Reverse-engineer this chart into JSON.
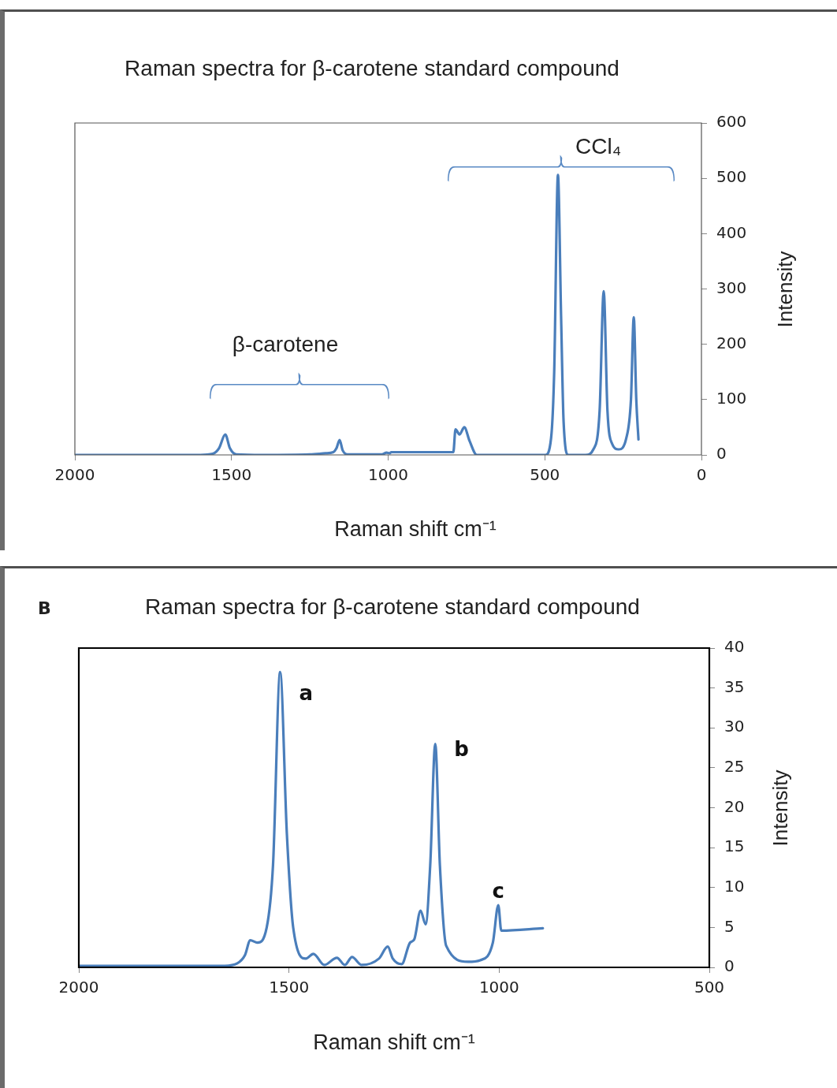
{
  "chart_data": [
    {
      "type": "line",
      "title": "Raman spectra for β-carotene standard compound",
      "xlabel": "Raman shift cm⁻¹",
      "ylabel": "Intensity",
      "x": [
        2000,
        1600,
        1560,
        1540,
        1520,
        1505,
        1485,
        1400,
        1250,
        1200,
        1175,
        1165,
        1155,
        1145,
        1130,
        1020,
        1005,
        995,
        990,
        800,
        792,
        785,
        772,
        757,
        740,
        717,
        498,
        480,
        470,
        458,
        448,
        440,
        425,
        370,
        345,
        325,
        312,
        300,
        285,
        264,
        240,
        225,
        216,
        208,
        201
      ],
      "series": [
        {
          "color": "#4a7ebb",
          "values": [
            0,
            0,
            2,
            12,
            37,
            12,
            1,
            0,
            1,
            3,
            5,
            12,
            27,
            8,
            1,
            1,
            4,
            3,
            5,
            5,
            5,
            46,
            37,
            50,
            25,
            0,
            0,
            30,
            150,
            506,
            250,
            60,
            0,
            0,
            10,
            80,
            296,
            80,
            20,
            10,
            30,
            100,
            249,
            100,
            28
          ]
        }
      ],
      "xlim": [
        2000,
        0
      ],
      "xticks": [
        2000,
        1500,
        1000,
        500,
        0
      ],
      "ylim": [
        0,
        600
      ],
      "yticks": [
        0,
        100,
        200,
        300,
        400,
        500,
        600
      ],
      "annotations": [
        "β-carotene",
        "CCl₄"
      ],
      "grid": false,
      "legend": false,
      "marker": "none",
      "line_style": "solid"
    },
    {
      "type": "line",
      "title": "Raman spectra for β-carotene standard compound",
      "xlabel": "Raman shift cm⁻¹",
      "ylabel": "Intensity",
      "x": [
        2000,
        1900,
        1800,
        1700,
        1653,
        1623,
        1605,
        1592,
        1575,
        1553,
        1538,
        1521,
        1505,
        1490,
        1460,
        1442,
        1416,
        1386,
        1367,
        1350,
        1327,
        1286,
        1265,
        1253,
        1232,
        1212,
        1202,
        1187,
        1175,
        1164,
        1152,
        1141,
        1126,
        1074,
        1045,
        1015,
        1002,
        995,
        896
      ],
      "series": [
        {
          "color": "#4a7ebb",
          "values": [
            0.2,
            0.2,
            0.2,
            0.2,
            0.2,
            0.5,
            1.5,
            3.4,
            3.1,
            5,
            12.8,
            37,
            16.7,
            5,
            1.1,
            1.7,
            0.3,
            1.2,
            0.3,
            1.3,
            0.3,
            1.1,
            2.6,
            1.1,
            0.4,
            3.1,
            3.5,
            7.1,
            5.4,
            12.8,
            28,
            12.8,
            2.7,
            0.7,
            0.9,
            3.1,
            7.8,
            4.6,
            4.9
          ]
        }
      ],
      "xlim": [
        2000,
        500
      ],
      "xticks": [
        2000,
        1500,
        1000,
        500
      ],
      "ylim": [
        0,
        40
      ],
      "yticks": [
        0,
        5,
        10,
        15,
        20,
        25,
        30,
        35,
        40
      ],
      "annotations": [
        "B",
        {
          "text": "a",
          "x": 1521,
          "y": 37
        },
        {
          "text": "b",
          "x": 1152,
          "y": 28
        },
        {
          "text": "c",
          "x": 1002,
          "y": 7.8
        }
      ],
      "grid": false,
      "legend": false,
      "marker": "none",
      "line_style": "solid"
    }
  ]
}
